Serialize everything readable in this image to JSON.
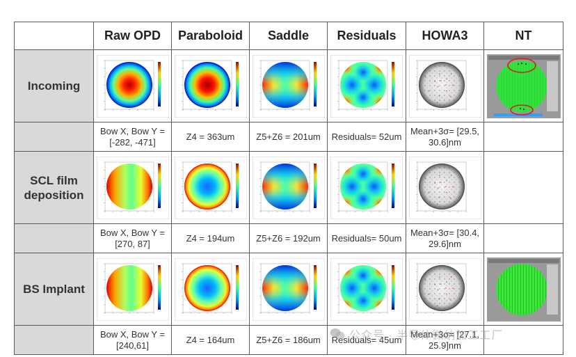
{
  "header": {
    "corner": "",
    "columns": [
      "Raw OPD",
      "Paraboloid",
      "Saddle",
      "Residuals",
      "HOWA3",
      "NT"
    ]
  },
  "rows": [
    {
      "label": "Incoming",
      "values": [
        "Bow X, Bow Y = [-282, -471]",
        "Z4 = 363um",
        "Z5+Z6 = 201um",
        "Residuals= 52um",
        "Mean+3σ= [29.5, 30.6]nm",
        ""
      ]
    },
    {
      "label": "SCL film deposition",
      "values": [
        "Bow X, Bow Y = [270, 87]",
        "Z4 = 194um",
        "Z5+Z6 = 192um",
        "Residuals= 50um",
        "Mean+3σ= [30.4, 29.6]nm",
        ""
      ]
    },
    {
      "label": "BS Implant",
      "values": [
        "Bow X, Bow Y = [240,61]",
        "Z4 = 164um",
        "Z5+Z6 = 186um",
        "Residuals= 45um",
        "Mean+3σ= [27.1, 25.9]nm",
        ""
      ]
    }
  ],
  "watermark": "公众号 · 半导体微纳加工工厂",
  "colors": {
    "label_bg": "#d9d9d9",
    "border": "#5a5a5a",
    "highlight_ellipse": "#d32020"
  }
}
